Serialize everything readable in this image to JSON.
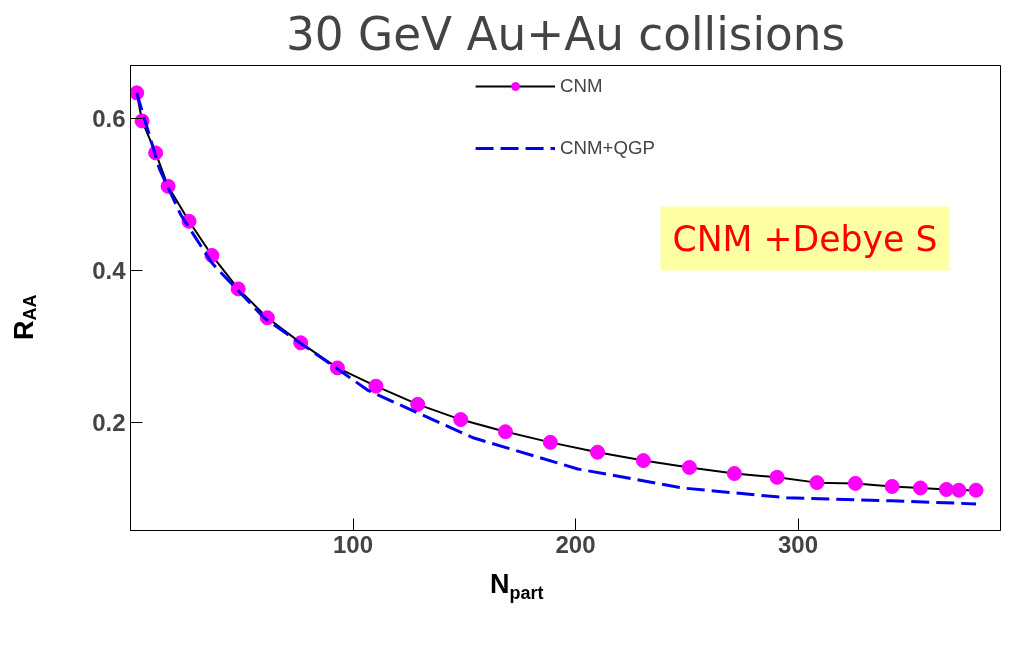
{
  "chart_data": {
    "type": "line",
    "title": "30 GeV Au+Au collisions",
    "xlabel": "N$_{part}$",
    "ylabel": "R$_{AA}$",
    "xlim": [
      0,
      391
    ],
    "ylim": [
      0.058,
      0.67
    ],
    "xticks": [
      100,
      200,
      300
    ],
    "yticks": [
      0.2,
      0.4,
      0.6
    ],
    "grid": false,
    "legend": "top",
    "annotations": [
      "CNM +Debye S"
    ],
    "series": [
      {
        "name": "CNM",
        "color": "#000000",
        "marker": "circle",
        "colors": [
          "#ff00ff",
          "#ff00ff",
          "#ff00ff",
          "#ff00ff",
          "#ff00ff",
          "#ff00ff",
          "#ff00ff",
          "#ff00ff",
          "#ff00ff",
          "#ff00ff",
          "#ff00ff",
          "#ff00ff",
          "#ff00ff",
          "#ff00ff",
          "#ff00ff",
          "#ff00ff",
          "#ff00ff",
          "#ff00ff",
          "#ff00ff",
          "#ff00ff",
          "#ff00ff",
          "#ff00ff",
          "#ff00ff",
          "#ff00ff",
          "#ff00ff",
          "#ff00ff",
          "#ff00ff"
        ],
        "line_style": "solid",
        "x": [
          2.8,
          5.2,
          11.3,
          16.9,
          26.3,
          36.6,
          48.4,
          61.5,
          76.5,
          93.0,
          110.3,
          129.1,
          148.4,
          168.5,
          188.7,
          209.9,
          230.5,
          251.2,
          271.4,
          290.6,
          308.5,
          325.8,
          342.3,
          355,
          366.7,
          372.3,
          380
        ],
        "values": [
          0.634,
          0.597,
          0.555,
          0.511,
          0.465,
          0.42,
          0.376,
          0.338,
          0.305,
          0.272,
          0.248,
          0.224,
          0.204,
          0.188,
          0.174,
          0.161,
          0.15,
          0.141,
          0.133,
          0.128,
          0.121,
          0.12,
          0.116,
          0.114,
          0.112,
          0.111,
          0.111
        ]
      },
      {
        "name": "CNM+QGP",
        "color": "#0000ee",
        "marker": "none",
        "line_style": "dashed",
        "x": [
          2.8,
          13,
          22.5,
          36.6,
          60,
          107,
          154,
          201,
          248,
          295,
          342,
          380
        ],
        "values": [
          0.634,
          0.534,
          0.474,
          0.41,
          0.338,
          0.242,
          0.18,
          0.139,
          0.114,
          0.101,
          0.097,
          0.093
        ]
      }
    ]
  }
}
